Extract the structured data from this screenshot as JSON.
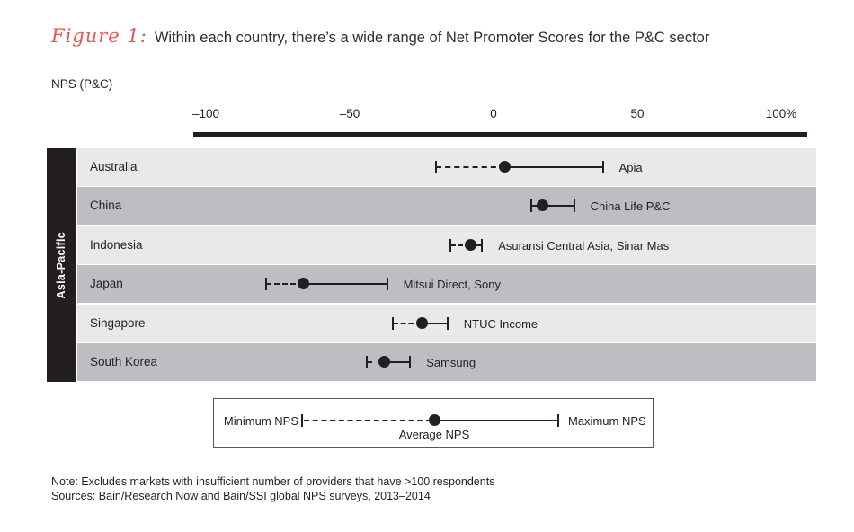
{
  "figure": {
    "label": "Figure 1:",
    "title": "Within each country, there’s a wide range of Net Promoter Scores for the P&C sector",
    "axis_label": "NPS (P&C)"
  },
  "chart_data": {
    "type": "range-dot",
    "group_label": "Asia-Pacific",
    "xlabel": "NPS (P&C)",
    "xlim": [
      -100,
      100
    ],
    "grid": false,
    "ticks": [
      {
        "value": -100,
        "label": "–100"
      },
      {
        "value": -50,
        "label": "–50"
      },
      {
        "value": 0,
        "label": "0"
      },
      {
        "value": 50,
        "label": "50"
      },
      {
        "value": 100,
        "label": "100%"
      }
    ],
    "legend": {
      "min_label": "Minimum NPS",
      "avg_label": "Average NPS",
      "max_label": "Maximum NPS"
    },
    "rows": [
      {
        "country": "Australia",
        "min": -20,
        "avg": 4,
        "max": 38,
        "annotation": "Apia"
      },
      {
        "country": "China",
        "min": 13,
        "avg": 17,
        "max": 28,
        "annotation": "China Life P&C"
      },
      {
        "country": "Indonesia",
        "min": -15,
        "avg": -8,
        "max": -4,
        "annotation": "Asuransi Central Asia, Sinar Mas"
      },
      {
        "country": "Japan",
        "min": -79,
        "avg": -66,
        "max": -37,
        "annotation": "Mitsui Direct, Sony"
      },
      {
        "country": "Singapore",
        "min": -35,
        "avg": -25,
        "max": -16,
        "annotation": "NTUC Income"
      },
      {
        "country": "South Korea",
        "min": -44,
        "avg": -38,
        "max": -29,
        "annotation": "Samsung"
      }
    ]
  },
  "notes": {
    "note": "Note: Excludes markets with insufficient number of providers that have >100 respondents",
    "sources": "Sources: Bain/Research Now and Bain/SSI global NPS surveys, 2013–2014"
  },
  "colors": {
    "accent_red": "#e8534e",
    "ink": "#231f20",
    "row_light": "#e8eae9",
    "row_dark": "#bcbec1",
    "sidebar_bg": "#231f20",
    "sidebar_text": "#ffffff"
  }
}
